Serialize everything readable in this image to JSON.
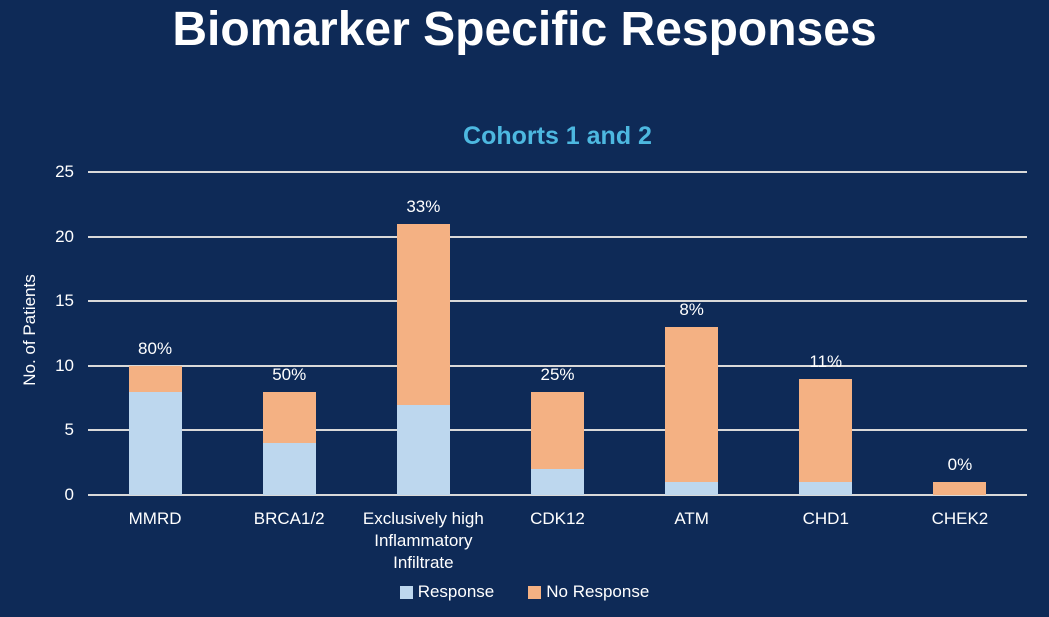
{
  "title": "Biomarker Specific Responses",
  "colors": {
    "background": "#0E2A57",
    "title_text": "#FFFFFF",
    "subtitle_text": "#4DB8E0",
    "axis_text": "#FFFFFF",
    "gridline": "#D9D9D9",
    "response": "#BDD7EE",
    "no_response": "#F4B183"
  },
  "chart_data": {
    "type": "bar",
    "stacked": true,
    "title": "Cohorts 1 and 2",
    "xlabel": "",
    "ylabel": "No. of Patients",
    "ylim": [
      0,
      25
    ],
    "yticks": [
      0,
      5,
      10,
      15,
      20,
      25
    ],
    "grid": true,
    "legend_position": "bottom",
    "categories": [
      "MMRD",
      "BRCA1/2",
      "Exclusively high\nInflammatory\nInfiltrate",
      "CDK12",
      "ATM",
      "CHD1",
      "CHEK2"
    ],
    "series": [
      {
        "name": "Response",
        "color": "#BDD7EE",
        "values": [
          8,
          4,
          7,
          2,
          1,
          1,
          0
        ]
      },
      {
        "name": "No Response",
        "color": "#F4B183",
        "values": [
          2,
          4,
          14,
          6,
          12,
          8,
          1
        ]
      }
    ],
    "totals": [
      10,
      8,
      21,
      8,
      13,
      9,
      1
    ],
    "bar_labels": [
      "80%",
      "50%",
      "33%",
      "25%",
      "8%",
      "11%",
      "0%"
    ]
  }
}
